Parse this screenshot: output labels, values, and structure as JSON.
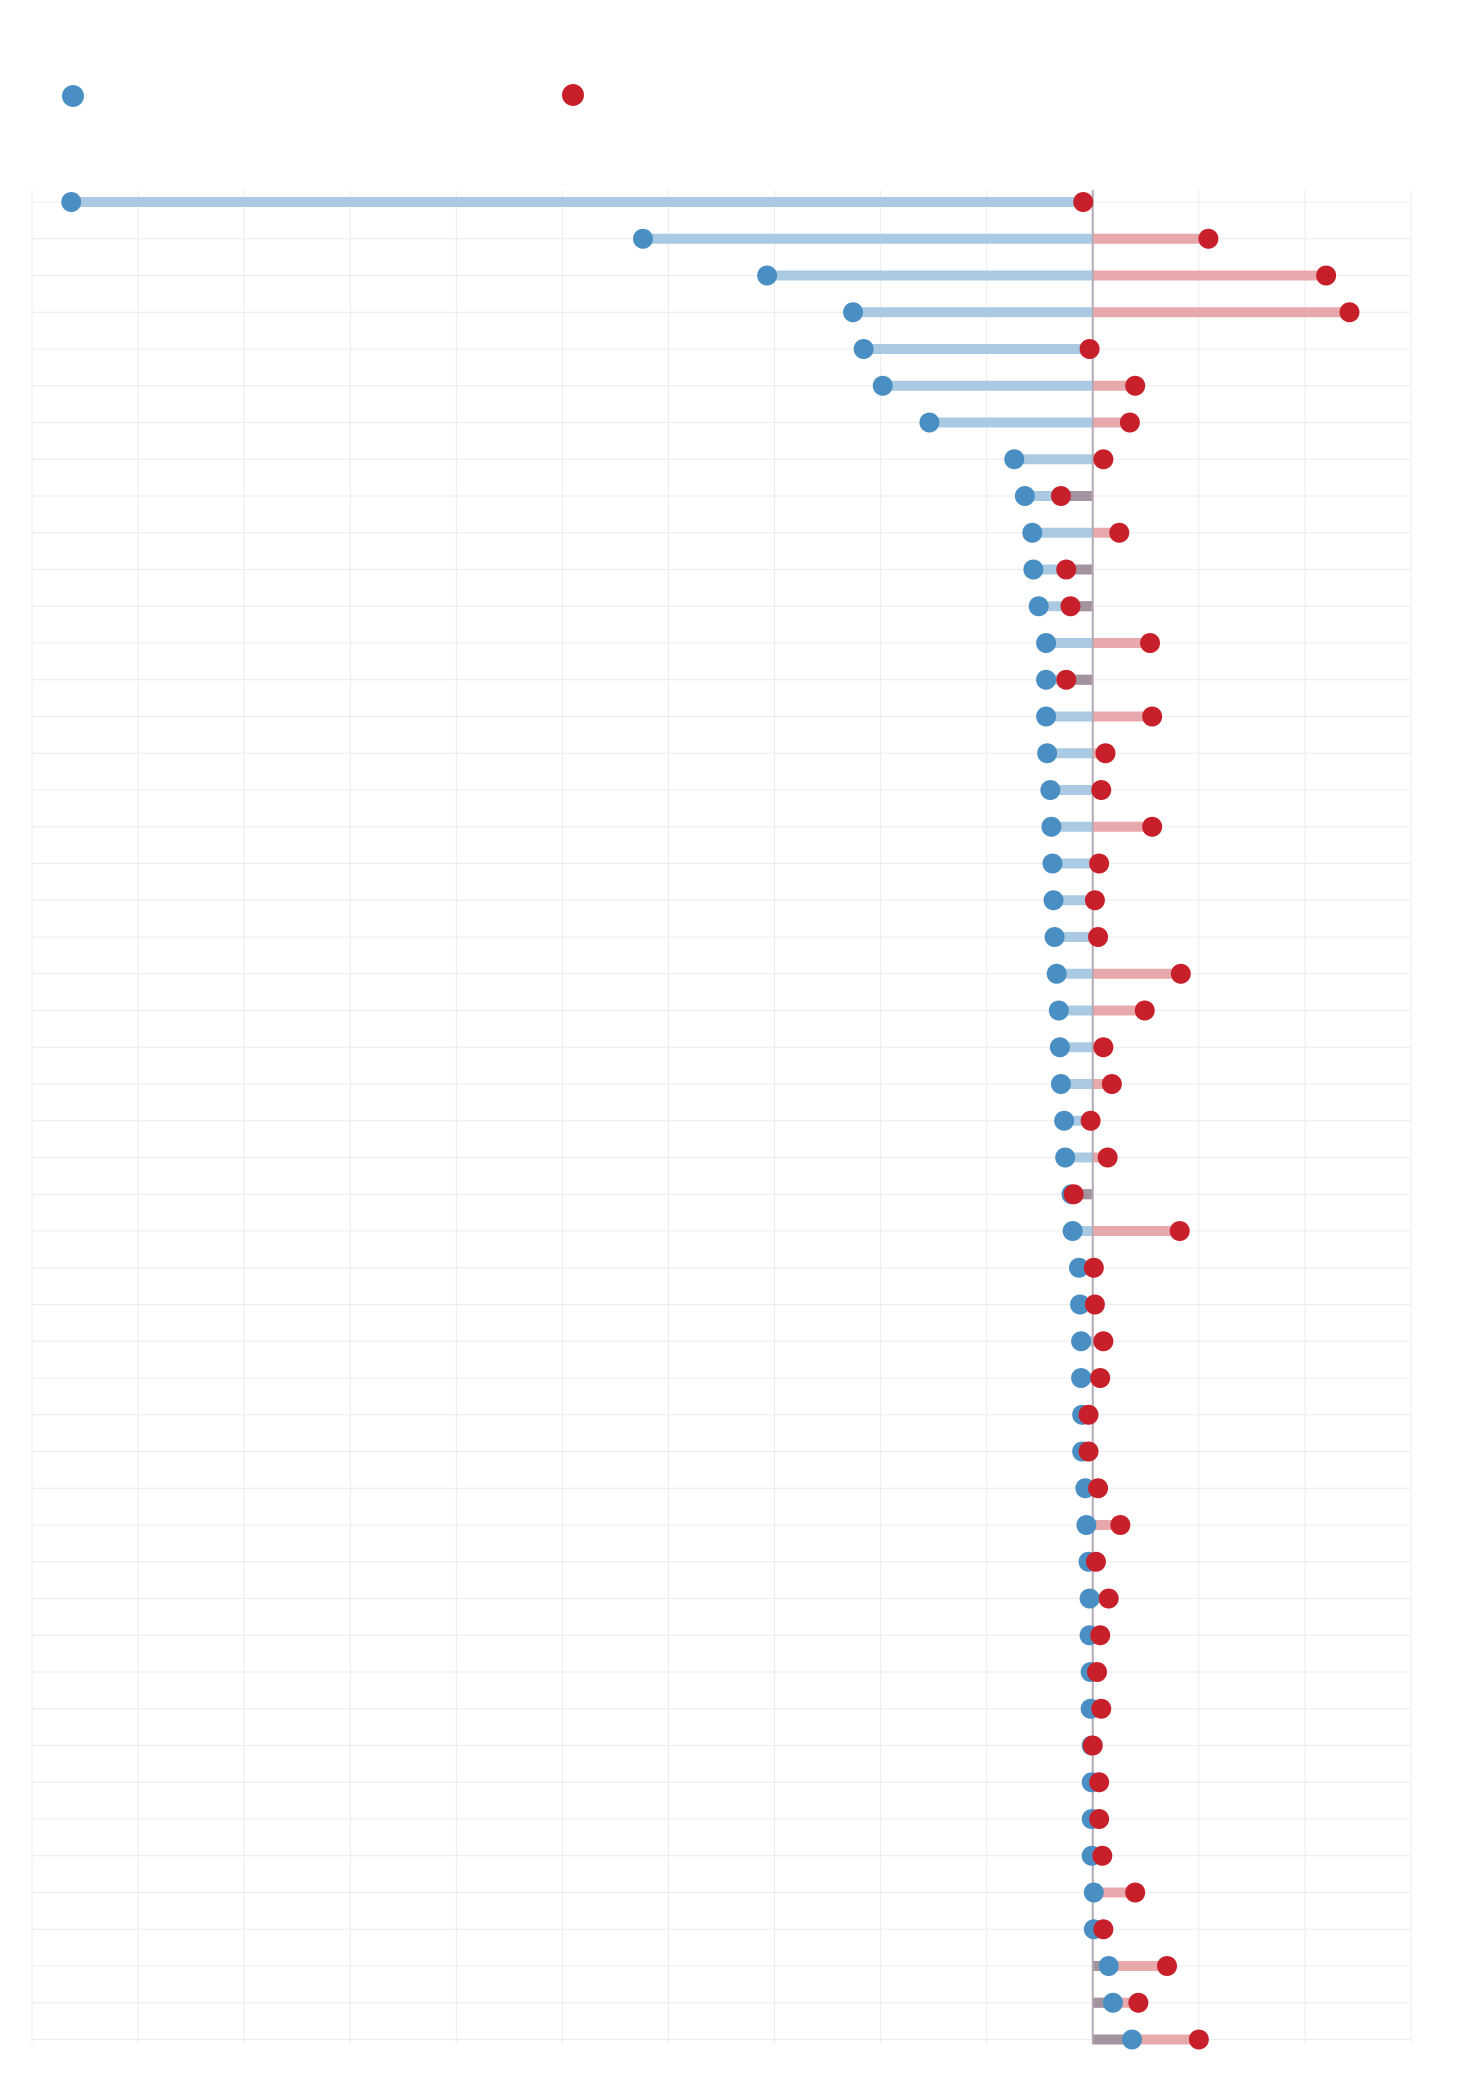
{
  "chart_data": {
    "type": "dumbbell",
    "orientation": "horizontal",
    "baseline": 0,
    "xlim": [
      -10,
      3
    ],
    "grid": true,
    "legend_position": "top-left",
    "colors": {
      "series_a": "#4a8fc4",
      "series_b": "#c8202a",
      "bar_a": "#a9cae2",
      "bar_b": "#e8a9ac",
      "bar_overlap": "#a3939f",
      "baseline": "#b4a9b4",
      "grid": "#ececec"
    },
    "series": [
      {
        "values": [
          -9.63,
          -4.24,
          -3.07,
          -2.26,
          -2.16,
          -1.98,
          -1.54,
          -0.74,
          -0.64,
          -0.57,
          -0.56,
          -0.51,
          -0.44,
          -0.44,
          -0.44,
          -0.43,
          -0.4,
          -0.39,
          -0.38,
          -0.37,
          -0.36,
          -0.34,
          -0.32,
          -0.31,
          -0.3,
          -0.27,
          -0.26,
          -0.2,
          -0.19,
          -0.13,
          -0.12,
          -0.11,
          -0.11,
          -0.1,
          -0.1,
          -0.07,
          -0.06,
          -0.04,
          -0.03,
          -0.03,
          -0.02,
          -0.02,
          -0.01,
          -0.01,
          -0.01,
          -0.01,
          0.01,
          0.01,
          0.15,
          0.19,
          0.37
        ]
      },
      {
        "values": [
          -0.09,
          1.09,
          2.2,
          2.42,
          -0.03,
          0.4,
          0.35,
          0.1,
          -0.3,
          0.25,
          -0.25,
          -0.21,
          0.54,
          -0.25,
          0.56,
          0.12,
          0.08,
          0.56,
          0.06,
          0.02,
          0.05,
          0.83,
          0.49,
          0.1,
          0.18,
          -0.02,
          0.14,
          -0.18,
          0.82,
          0.01,
          0.02,
          0.1,
          0.07,
          -0.04,
          -0.04,
          0.05,
          0.26,
          0.03,
          0.15,
          0.07,
          0.04,
          0.08,
          0.0,
          0.06,
          0.06,
          0.09,
          0.4,
          0.1,
          0.7,
          0.43,
          1.0
        ]
      }
    ]
  }
}
